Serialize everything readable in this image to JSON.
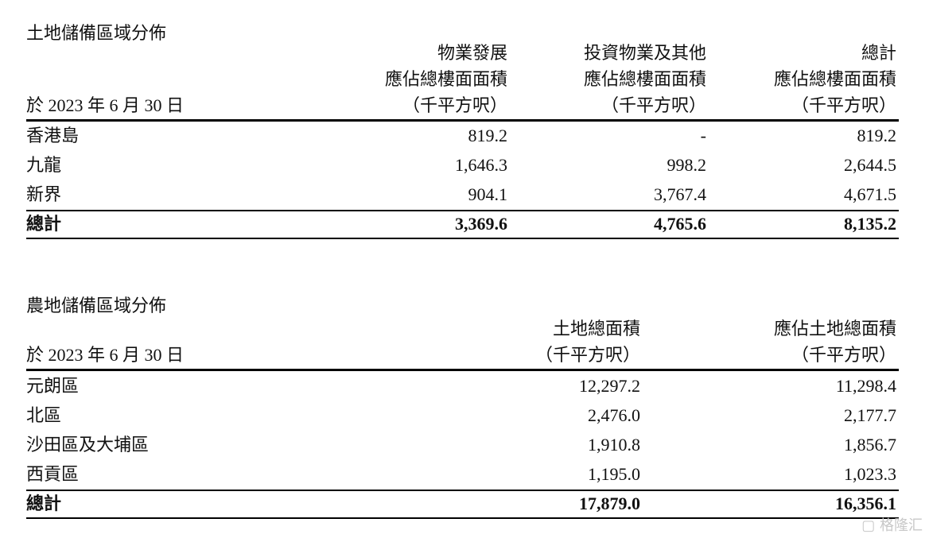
{
  "table1": {
    "title": "土地儲備區域分佈",
    "date_label": "於 2023 年 6 月 30 日",
    "columns": [
      {
        "lines": [
          "物業發展",
          "應佔總樓面面積",
          "（千平方呎）"
        ]
      },
      {
        "lines": [
          "投資物業及其他",
          "應佔總樓面面積",
          "（千平方呎）"
        ]
      },
      {
        "lines": [
          "總計",
          "應佔總樓面面積",
          "（千平方呎）"
        ]
      }
    ],
    "rows": [
      {
        "label": "香港島",
        "values": [
          "819.2",
          "-",
          "819.2"
        ]
      },
      {
        "label": "九龍",
        "values": [
          "1,646.3",
          "998.2",
          "2,644.5"
        ]
      },
      {
        "label": "新界",
        "values": [
          "904.1",
          "3,767.4",
          "4,671.5"
        ]
      }
    ],
    "total": {
      "label": "總計",
      "values": [
        "3,369.6",
        "4,765.6",
        "8,135.2"
      ]
    }
  },
  "table2": {
    "title": "農地儲備區域分佈",
    "date_label": "於 2023 年 6 月 30 日",
    "columns": [
      {
        "lines": [
          "土地總面積",
          "（千平方呎）"
        ]
      },
      {
        "lines": [
          "應佔土地總面積",
          "（千平方呎）"
        ]
      }
    ],
    "rows": [
      {
        "label": "元朗區",
        "values": [
          "12,297.2",
          "11,298.4"
        ]
      },
      {
        "label": "北區",
        "values": [
          "2,476.0",
          "2,177.7"
        ]
      },
      {
        "label": "沙田區及大埔區",
        "values": [
          "1,910.8",
          "1,856.7"
        ]
      },
      {
        "label": "西貢區",
        "values": [
          "1,195.0",
          "1,023.3"
        ]
      }
    ],
    "total": {
      "label": "總計",
      "values": [
        "17,879.0",
        "16,356.1"
      ]
    }
  },
  "watermark": "格隆汇"
}
